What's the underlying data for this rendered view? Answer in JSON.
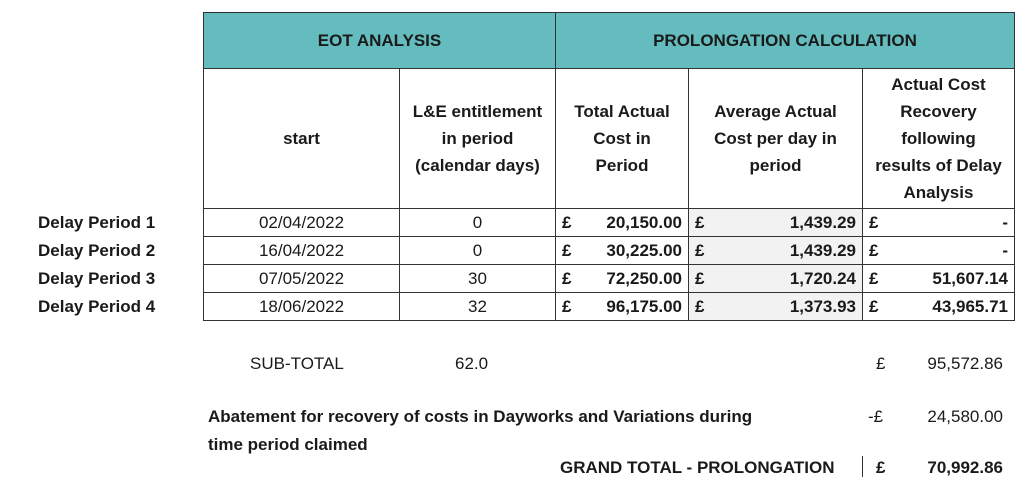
{
  "headers": {
    "eot": "EOT ANALYSIS",
    "prolongation": "PROLONGATION CALCULATION",
    "columns": [
      [
        "start"
      ],
      [
        "L&E entitlement",
        "in period",
        "(calendar days)"
      ],
      [
        "Total Actual",
        "Cost in",
        "Period"
      ],
      [
        "Average Actual",
        "Cost per day in",
        "period"
      ],
      [
        "Actual Cost",
        "Recovery",
        "following",
        "results of Delay",
        "Analysis"
      ]
    ]
  },
  "currency": "£",
  "rows": [
    {
      "label": "Delay Period 1",
      "start": "02/04/2022",
      "days": "0",
      "total": "20,150.00",
      "avg": "1,439.29",
      "recovery": "-"
    },
    {
      "label": "Delay Period 2",
      "start": "16/04/2022",
      "days": "0",
      "total": "30,225.00",
      "avg": "1,439.29",
      "recovery": "-"
    },
    {
      "label": "Delay Period 3",
      "start": "07/05/2022",
      "days": "30",
      "total": "72,250.00",
      "avg": "1,720.24",
      "recovery": "51,607.14"
    },
    {
      "label": "Delay Period 4",
      "start": "18/06/2022",
      "days": "32",
      "total": "96,175.00",
      "avg": "1,373.93",
      "recovery": "43,965.71"
    }
  ],
  "subtotal": {
    "label": "SUB-TOTAL",
    "days": "62.0",
    "currency": "£",
    "value": "95,572.86"
  },
  "abatement": {
    "line1": "Abatement for recovery of costs in Dayworks and Variations during",
    "line2": "time period claimed",
    "currency": "-£",
    "value": "24,580.00"
  },
  "grand_total": {
    "label": "GRAND TOTAL - PROLONGATION",
    "currency": "£",
    "value": "70,992.86"
  }
}
